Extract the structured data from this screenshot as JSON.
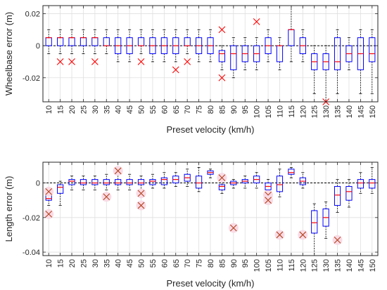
{
  "chart_data": [
    {
      "type": "box",
      "xlabel": "Preset velocity (km/h)",
      "ylabel": "Wheelbase error (m)",
      "ylim": [
        -0.035,
        0.025
      ],
      "yticks": [
        0.02,
        0,
        -0.02
      ],
      "ytick_labels": [
        "0.02",
        "0",
        "-0.02"
      ],
      "grid": true,
      "categories": [
        "10",
        "15",
        "20",
        "25",
        "30",
        "35",
        "40",
        "45",
        "50",
        "55",
        "60",
        "65",
        "70",
        "75",
        "80",
        "85",
        "90",
        "95",
        "100",
        "105",
        "110",
        "115",
        "120",
        "125",
        "130",
        "135",
        "140",
        "145",
        "150"
      ],
      "boxes": [
        {
          "q1": 0.0,
          "median": 0.005,
          "q3": 0.005,
          "whisker_low": -0.005,
          "whisker_high": 0.01
        },
        {
          "q1": 0.0,
          "median": 0.005,
          "q3": 0.005,
          "whisker_low": -0.005,
          "whisker_high": 0.01
        },
        {
          "q1": 0.0,
          "median": 0.005,
          "q3": 0.005,
          "whisker_low": -0.005,
          "whisker_high": 0.01
        },
        {
          "q1": 0.0,
          "median": 0.005,
          "q3": 0.005,
          "whisker_low": -0.005,
          "whisker_high": 0.01
        },
        {
          "q1": 0.0,
          "median": 0.005,
          "q3": 0.005,
          "whisker_low": -0.005,
          "whisker_high": 0.01
        },
        {
          "q1": 0.0,
          "median": 0.0,
          "q3": 0.005,
          "whisker_low": -0.005,
          "whisker_high": 0.01
        },
        {
          "q1": -0.005,
          "median": 0.0,
          "q3": 0.005,
          "whisker_low": -0.01,
          "whisker_high": 0.01
        },
        {
          "q1": -0.005,
          "median": 0.0,
          "q3": 0.005,
          "whisker_low": -0.01,
          "whisker_high": 0.01
        },
        {
          "q1": 0.0,
          "median": 0.0,
          "q3": 0.005,
          "whisker_low": -0.005,
          "whisker_high": 0.01
        },
        {
          "q1": -0.005,
          "median": 0.0,
          "q3": 0.005,
          "whisker_low": -0.01,
          "whisker_high": 0.01
        },
        {
          "q1": -0.005,
          "median": 0.0,
          "q3": 0.005,
          "whisker_low": -0.01,
          "whisker_high": 0.01
        },
        {
          "q1": -0.005,
          "median": 0.0,
          "q3": 0.005,
          "whisker_low": -0.01,
          "whisker_high": 0.01
        },
        {
          "q1": 0.0,
          "median": 0.0,
          "q3": 0.005,
          "whisker_low": -0.005,
          "whisker_high": 0.01
        },
        {
          "q1": -0.005,
          "median": 0.0,
          "q3": 0.005,
          "whisker_low": -0.01,
          "whisker_high": 0.01
        },
        {
          "q1": -0.005,
          "median": 0.0,
          "q3": 0.005,
          "whisker_low": -0.01,
          "whisker_high": 0.01
        },
        {
          "q1": -0.01,
          "median": -0.005,
          "q3": -0.003,
          "whisker_low": -0.015,
          "whisker_high": 0.0
        },
        {
          "q1": -0.015,
          "median": -0.005,
          "q3": 0.0,
          "whisker_low": -0.02,
          "whisker_high": 0.005
        },
        {
          "q1": -0.01,
          "median": -0.005,
          "q3": 0.0,
          "whisker_low": -0.015,
          "whisker_high": 0.005
        },
        {
          "q1": -0.01,
          "median": -0.005,
          "q3": 0.0,
          "whisker_low": -0.015,
          "whisker_high": 0.005
        },
        {
          "q1": -0.005,
          "median": 0.0,
          "q3": 0.005,
          "whisker_low": -0.01,
          "whisker_high": 0.01
        },
        {
          "q1": -0.01,
          "median": 0.0,
          "q3": 0.0,
          "whisker_low": -0.015,
          "whisker_high": 0.005
        },
        {
          "q1": 0.0,
          "median": 0.01,
          "q3": 0.01,
          "whisker_low": -0.01,
          "whisker_high": 0.025
        },
        {
          "q1": -0.005,
          "median": 0.0,
          "q3": 0.005,
          "whisker_low": -0.01,
          "whisker_high": 0.01
        },
        {
          "q1": -0.015,
          "median": -0.01,
          "q3": -0.005,
          "whisker_low": -0.03,
          "whisker_high": 0.0
        },
        {
          "q1": -0.015,
          "median": -0.01,
          "q3": -0.005,
          "whisker_low": -0.035,
          "whisker_high": 0.0
        },
        {
          "q1": -0.015,
          "median": -0.01,
          "q3": 0.005,
          "whisker_low": -0.03,
          "whisker_high": 0.01
        },
        {
          "q1": -0.01,
          "median": -0.005,
          "q3": 0.0,
          "whisker_low": -0.015,
          "whisker_high": 0.005
        },
        {
          "q1": -0.015,
          "median": -0.005,
          "q3": 0.005,
          "whisker_low": -0.03,
          "whisker_high": 0.01
        },
        {
          "q1": -0.01,
          "median": -0.005,
          "q3": 0.005,
          "whisker_low": -0.03,
          "whisker_high": 0.01
        }
      ],
      "outliers": [
        {
          "category": "15",
          "y": -0.01
        },
        {
          "category": "20",
          "y": -0.01
        },
        {
          "category": "30",
          "y": -0.01
        },
        {
          "category": "50",
          "y": -0.01
        },
        {
          "category": "65",
          "y": -0.015
        },
        {
          "category": "70",
          "y": -0.01
        },
        {
          "category": "85",
          "y": 0.01
        },
        {
          "category": "85",
          "y": -0.02
        },
        {
          "category": "100",
          "y": 0.015
        },
        {
          "category": "130",
          "y": -0.035
        }
      ]
    },
    {
      "type": "box",
      "xlabel": "Preset velocity (km/h)",
      "ylabel": "Length error (m)",
      "ylim": [
        -0.042,
        0.012
      ],
      "yticks": [
        0,
        -0.02,
        -0.04
      ],
      "ytick_labels": [
        "0",
        "-0.02",
        "-0.04"
      ],
      "grid": true,
      "categories": [
        "10",
        "15",
        "20",
        "25",
        "30",
        "35",
        "40",
        "45",
        "50",
        "55",
        "60",
        "65",
        "70",
        "75",
        "80",
        "85",
        "90",
        "95",
        "100",
        "105",
        "110",
        "115",
        "120",
        "125",
        "130",
        "135",
        "140",
        "145",
        "150"
      ],
      "boxes": [
        {
          "q1": -0.01,
          "median": -0.009,
          "q3": -0.007,
          "whisker_low": -0.013,
          "whisker_high": -0.003
        },
        {
          "q1": -0.006,
          "median": -0.0025,
          "q3": -0.001,
          "whisker_low": -0.013,
          "whisker_high": 0.001
        },
        {
          "q1": -0.001,
          "median": 0.001,
          "q3": 0.002,
          "whisker_low": -0.004,
          "whisker_high": 0.004
        },
        {
          "q1": -0.001,
          "median": 0.0,
          "q3": 0.002,
          "whisker_low": -0.004,
          "whisker_high": 0.004
        },
        {
          "q1": -0.001,
          "median": 0.0,
          "q3": 0.002,
          "whisker_low": -0.004,
          "whisker_high": 0.004
        },
        {
          "q1": -0.001,
          "median": 0.0,
          "q3": 0.002,
          "whisker_low": -0.004,
          "whisker_high": 0.005
        },
        {
          "q1": -0.001,
          "median": 0.0,
          "q3": 0.002,
          "whisker_low": -0.004,
          "whisker_high": 0.005
        },
        {
          "q1": -0.001,
          "median": 0.0,
          "q3": 0.002,
          "whisker_low": -0.004,
          "whisker_high": 0.005
        },
        {
          "q1": -0.001,
          "median": 0.0,
          "q3": 0.002,
          "whisker_low": -0.004,
          "whisker_high": 0.004
        },
        {
          "q1": -0.001,
          "median": 0.001,
          "q3": 0.002,
          "whisker_low": -0.003,
          "whisker_high": 0.005
        },
        {
          "q1": -0.001,
          "median": 0.002,
          "q3": 0.003,
          "whisker_low": -0.003,
          "whisker_high": 0.006
        },
        {
          "q1": 0.0,
          "median": 0.002,
          "q3": 0.004,
          "whisker_low": -0.002,
          "whisker_high": 0.006
        },
        {
          "q1": 0.001,
          "median": 0.003,
          "q3": 0.005,
          "whisker_low": -0.002,
          "whisker_high": 0.008
        },
        {
          "q1": -0.003,
          "median": 0.0,
          "q3": 0.004,
          "whisker_low": -0.005,
          "whisker_high": 0.009
        },
        {
          "q1": 0.005,
          "median": 0.006,
          "q3": 0.007,
          "whisker_low": 0.003,
          "whisker_high": 0.008
        },
        {
          "q1": -0.004,
          "median": -0.002,
          "q3": -0.001,
          "whisker_low": -0.006,
          "whisker_high": 0.001
        },
        {
          "q1": -0.001,
          "median": 0.0,
          "q3": 0.001,
          "whisker_low": -0.003,
          "whisker_high": 0.002
        },
        {
          "q1": 0.0,
          "median": 0.001,
          "q3": 0.002,
          "whisker_low": -0.003,
          "whisker_high": 0.004
        },
        {
          "q1": 0.0,
          "median": 0.002,
          "q3": 0.004,
          "whisker_low": -0.003,
          "whisker_high": 0.006
        },
        {
          "q1": -0.004,
          "median": -0.002,
          "q3": 0.0,
          "whisker_low": -0.007,
          "whisker_high": 0.002
        },
        {
          "q1": -0.005,
          "median": -0.001,
          "q3": 0.004,
          "whisker_low": -0.008,
          "whisker_high": 0.008
        },
        {
          "q1": 0.005,
          "median": 0.006,
          "q3": 0.008,
          "whisker_low": 0.003,
          "whisker_high": 0.009
        },
        {
          "q1": -0.001,
          "median": 0.001,
          "q3": 0.003,
          "whisker_low": -0.003,
          "whisker_high": 0.006
        },
        {
          "q1": -0.029,
          "median": -0.023,
          "q3": -0.016,
          "whisker_low": -0.042,
          "whisker_high": -0.012
        },
        {
          "q1": -0.025,
          "median": -0.02,
          "q3": -0.015,
          "whisker_low": -0.032,
          "whisker_high": -0.011
        },
        {
          "q1": -0.013,
          "median": -0.007,
          "q3": -0.002,
          "whisker_low": -0.017,
          "whisker_high": 0.002
        },
        {
          "q1": -0.01,
          "median": -0.005,
          "q3": -0.002,
          "whisker_low": -0.014,
          "whisker_high": 0.002
        },
        {
          "q1": -0.003,
          "median": 0.0,
          "q3": 0.002,
          "whisker_low": -0.006,
          "whisker_high": 0.006
        },
        {
          "q1": -0.003,
          "median": 0.0,
          "q3": 0.002,
          "whisker_low": -0.006,
          "whisker_high": 0.009
        }
      ],
      "outliers": [
        {
          "category": "10",
          "y": -0.005
        },
        {
          "category": "10",
          "y": -0.018
        },
        {
          "category": "35",
          "y": -0.008
        },
        {
          "category": "40",
          "y": 0.007
        },
        {
          "category": "50",
          "y": -0.006
        },
        {
          "category": "50",
          "y": -0.013
        },
        {
          "category": "85",
          "y": 0.003
        },
        {
          "category": "90",
          "y": -0.026
        },
        {
          "category": "105",
          "y": -0.007
        },
        {
          "category": "105",
          "y": -0.01
        },
        {
          "category": "110",
          "y": -0.03
        },
        {
          "category": "120",
          "y": -0.03
        },
        {
          "category": "135",
          "y": -0.033
        }
      ]
    }
  ],
  "colors": {
    "box": "#0000ff",
    "median": "#ff0000",
    "outlier_top": "#ff0000",
    "outlier_bottom": "#b5421c",
    "outlier_halo": "#f9dbe6",
    "grid": "#dfdfdf",
    "axis": "#262626",
    "whisker": "#000000"
  }
}
